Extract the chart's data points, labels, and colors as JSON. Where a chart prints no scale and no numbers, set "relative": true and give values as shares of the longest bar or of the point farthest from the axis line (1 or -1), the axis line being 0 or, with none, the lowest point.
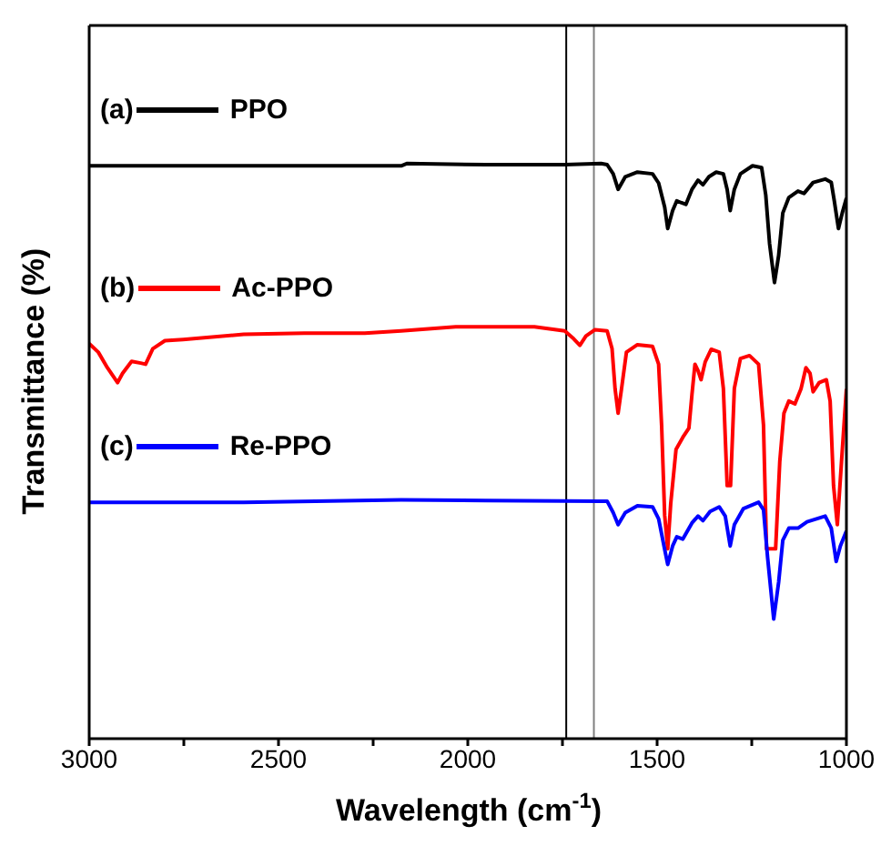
{
  "chart_data": {
    "type": "line",
    "relative": true,
    "xlabel": "Wavelength (cm$^{-1}$)",
    "ylabel": "Transmittance (%)",
    "xlim": [
      3000,
      1000
    ],
    "xticks": [
      3000,
      {
        "value": 2750,
        "label": null
      },
      2500,
      {
        "value": 2250,
        "label": null
      },
      2000,
      {
        "value": 1750,
        "label": null
      },
      1500,
      {
        "value": 1250,
        "label": null
      },
      1000
    ],
    "tick_labels": "x",
    "legend": "left",
    "marker": "none",
    "line_style": "solid",
    "annotations": [
      "(a)",
      "(b)",
      "(c)"
    ],
    "ref_lines": [
      {
        "axis": "x",
        "value": 1740,
        "color": "#000000"
      },
      {
        "axis": "x",
        "value": 1667,
        "color": "#808080"
      }
    ],
    "series": [
      {
        "name": "PPO",
        "color": "#000000",
        "x": [
          3000,
          2592,
          2176,
          2160,
          1952,
          1744,
          1648,
          1632,
          1616,
          1603,
          1584,
          1552,
          1512,
          1496,
          1480,
          1472,
          1459,
          1448,
          1437,
          1424,
          1408,
          1392,
          1379,
          1363,
          1344,
          1325,
          1315,
          1307,
          1296,
          1280,
          1248,
          1224,
          1213,
          1203,
          1190,
          1179,
          1168,
          1152,
          1128,
          1112,
          1088,
          1056,
          1040,
          1032,
          1021,
          1011,
          1000
        ],
        "values": [
          0.996,
          0.996,
          0.996,
          1.0,
          0.998,
          0.998,
          1.0,
          0.998,
          0.982,
          0.955,
          0.977,
          0.985,
          0.982,
          0.966,
          0.924,
          0.887,
          0.918,
          0.935,
          0.932,
          0.929,
          0.955,
          0.971,
          0.963,
          0.977,
          0.985,
          0.982,
          0.955,
          0.918,
          0.955,
          0.982,
          0.996,
          0.993,
          0.945,
          0.861,
          0.793,
          0.84,
          0.914,
          0.941,
          0.952,
          0.948,
          0.967,
          0.973,
          0.967,
          0.935,
          0.887,
          0.914,
          0.94
        ]
      },
      {
        "name": "Ac-PPO",
        "color": "#ff0000",
        "x": [
          3000,
          2976,
          2952,
          2925,
          2912,
          2888,
          2864,
          2851,
          2832,
          2800,
          2752,
          2592,
          2432,
          2272,
          2176,
          2112,
          2032,
          1952,
          1824,
          1744,
          1720,
          1704,
          1688,
          1664,
          1632,
          1619,
          1611,
          1603,
          1594,
          1581,
          1552,
          1512,
          1496,
          1488,
          1480,
          1472,
          1464,
          1450,
          1432,
          1416,
          1408,
          1400,
          1392,
          1384,
          1373,
          1357,
          1336,
          1325,
          1315,
          1306,
          1296,
          1280,
          1256,
          1232,
          1219,
          1211,
          1187,
          1176,
          1165,
          1152,
          1136,
          1120,
          1107,
          1096,
          1088,
          1072,
          1053,
          1043,
          1034,
          1024,
          1013,
          1000
        ],
        "values": [
          0.687,
          0.672,
          0.645,
          0.619,
          0.635,
          0.656,
          0.653,
          0.651,
          0.678,
          0.692,
          0.694,
          0.703,
          0.705,
          0.705,
          0.709,
          0.712,
          0.716,
          0.716,
          0.716,
          0.709,
          0.695,
          0.684,
          0.7,
          0.711,
          0.709,
          0.678,
          0.608,
          0.566,
          0.608,
          0.672,
          0.685,
          0.682,
          0.651,
          0.543,
          0.388,
          0.33,
          0.409,
          0.503,
          0.524,
          0.54,
          0.598,
          0.651,
          0.64,
          0.624,
          0.655,
          0.677,
          0.672,
          0.609,
          0.44,
          0.44,
          0.609,
          0.661,
          0.666,
          0.651,
          0.545,
          0.33,
          0.33,
          0.482,
          0.566,
          0.587,
          0.582,
          0.608,
          0.645,
          0.635,
          0.603,
          0.619,
          0.624,
          0.587,
          0.44,
          0.372,
          0.481,
          0.608
        ]
      },
      {
        "name": "Re-PPO",
        "color": "#0000ff",
        "x": [
          3000,
          2592,
          2176,
          1952,
          1648,
          1632,
          1616,
          1603,
          1584,
          1552,
          1512,
          1496,
          1480,
          1472,
          1459,
          1448,
          1432,
          1408,
          1392,
          1379,
          1360,
          1336,
          1320,
          1307,
          1296,
          1272,
          1232,
          1219,
          1208,
          1192,
          1179,
          1168,
          1152,
          1128,
          1104,
          1056,
          1040,
          1027,
          1016,
          1000
        ],
        "values": [
          0.411,
          0.411,
          0.415,
          0.414,
          0.413,
          0.413,
          0.393,
          0.372,
          0.393,
          0.405,
          0.403,
          0.382,
          0.329,
          0.303,
          0.335,
          0.351,
          0.347,
          0.375,
          0.387,
          0.379,
          0.395,
          0.403,
          0.387,
          0.335,
          0.372,
          0.4,
          0.411,
          0.398,
          0.314,
          0.208,
          0.272,
          0.345,
          0.366,
          0.366,
          0.377,
          0.387,
          0.366,
          0.308,
          0.335,
          0.361
        ]
      }
    ]
  }
}
